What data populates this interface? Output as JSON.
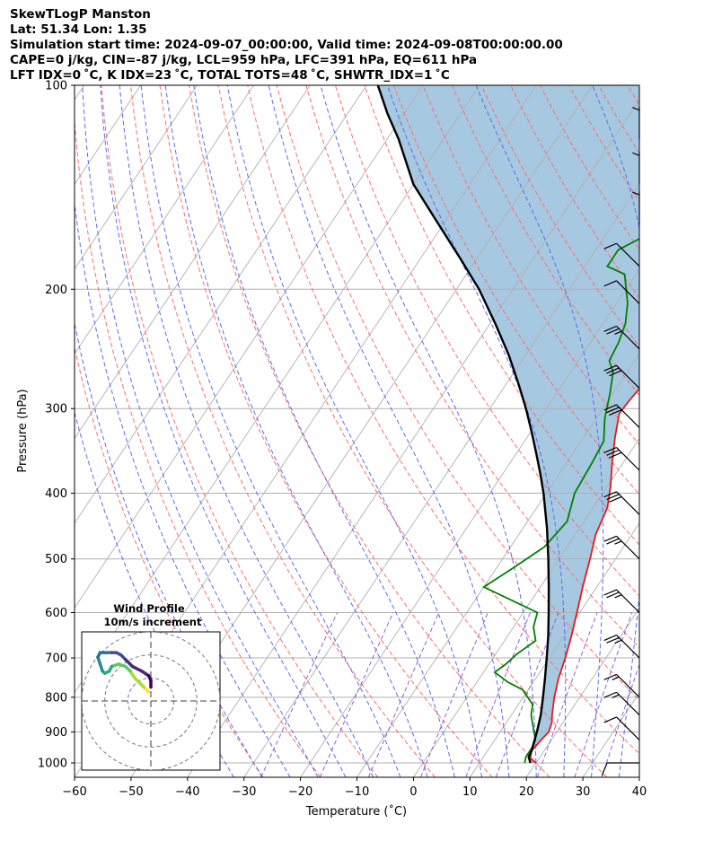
{
  "header": {
    "line1": "SkewTLogP Manston",
    "line2": "Lat: 51.34   Lon: 1.35",
    "line3": "Simulation start time: 2024-09-07_00:00:00, Valid time: 2024-09-08T00:00:00.00",
    "line4": "CAPE=0 j/kg, CIN=-87 j/kg, LCL=959 hPa, LFC=391 hPa, EQ=611 hPa",
    "line5": "LFT IDX=0 ˚C, K IDX=23 ˚C, TOTAL TOTS=48 ˚C, SHWTR_IDX=1 ˚C"
  },
  "chart_data": {
    "type": "line",
    "subtype": "skew-T log-P diagram",
    "xlabel": "Temperature (˚C)",
    "ylabel": "Pressure (hPa)",
    "xlim": [
      -60,
      40
    ],
    "ylim": [
      1050,
      100
    ],
    "yscale": "log",
    "xticks": [
      -60,
      -50,
      -40,
      -30,
      -20,
      -10,
      0,
      10,
      20,
      30,
      40
    ],
    "yticks": [
      100,
      200,
      300,
      400,
      500,
      600,
      700,
      800,
      900,
      1000
    ],
    "colors": {
      "temperature": "#e31a1c",
      "dewpoint": "#008000",
      "parcel": "#000000",
      "cape_fill": "#a6c8e0",
      "dry_adiabat": "#ff6b6b",
      "moist_adiabat": "#5a6cf0",
      "mixing_ratio": "#8a4fd1",
      "isotherm": "#b0b0b0"
    },
    "series": [
      {
        "key": "temperature",
        "points": [
          [
            20,
            1000
          ],
          [
            18.5,
            985
          ],
          [
            17.8,
            960
          ],
          [
            18.2,
            925
          ],
          [
            18.6,
            900
          ],
          [
            18.0,
            870
          ],
          [
            17.2,
            850
          ],
          [
            15.5,
            800
          ],
          [
            14.0,
            750
          ],
          [
            12.8,
            700
          ],
          [
            11.3,
            650
          ],
          [
            9.5,
            600
          ],
          [
            7.5,
            550
          ],
          [
            5.5,
            500
          ],
          [
            3.6,
            460
          ],
          [
            2.5,
            420
          ],
          [
            0.5,
            390
          ],
          [
            -2.0,
            360
          ],
          [
            -4.5,
            330
          ],
          [
            -6.5,
            305
          ],
          [
            -6.2,
            290
          ],
          [
            -5.5,
            270
          ],
          [
            -4.8,
            250
          ],
          [
            -3.5,
            235
          ],
          [
            -1.5,
            222
          ],
          [
            0.3,
            210
          ],
          [
            1.3,
            200
          ],
          [
            1.8,
            190
          ],
          [
            2.8,
            180
          ],
          [
            4.2,
            170
          ],
          [
            6.2,
            155
          ],
          [
            7.8,
            143
          ],
          [
            10.5,
            135
          ],
          [
            11.8,
            125
          ],
          [
            13.5,
            115
          ],
          [
            14.8,
            108
          ],
          [
            16,
            100
          ]
        ]
      },
      {
        "key": "dewpoint",
        "points": [
          [
            18,
            1000
          ],
          [
            17.5,
            980
          ],
          [
            17.5,
            950
          ],
          [
            17.2,
            925
          ],
          [
            16,
            900
          ],
          [
            13.5,
            850
          ],
          [
            12.5,
            820
          ],
          [
            9,
            780
          ],
          [
            5.5,
            760
          ],
          [
            2,
            735
          ],
          [
            3,
            715
          ],
          [
            3.8,
            690
          ],
          [
            5.5,
            660
          ],
          [
            3.5,
            630
          ],
          [
            2.5,
            600
          ],
          [
            -10,
            550
          ],
          [
            -7,
            515
          ],
          [
            -4,
            480
          ],
          [
            -3,
            440
          ],
          [
            -5,
            400
          ],
          [
            -5.5,
            360
          ],
          [
            -6,
            335
          ],
          [
            -8.5,
            310
          ],
          [
            -10.5,
            285
          ],
          [
            -12.5,
            265
          ],
          [
            -14.5,
            255
          ],
          [
            -15,
            240
          ],
          [
            -16,
            225
          ],
          [
            -18,
            210
          ],
          [
            -22,
            190
          ],
          [
            -26,
            185
          ],
          [
            -26,
            175
          ],
          [
            -23,
            167
          ],
          [
            -22,
            158
          ],
          [
            -16,
            130
          ],
          [
            -10,
            100
          ]
        ]
      },
      {
        "key": "parcel",
        "points": [
          [
            19,
            1000
          ],
          [
            18,
            980
          ],
          [
            17.8,
            960
          ],
          [
            16.5,
            900
          ],
          [
            15.2,
            850
          ],
          [
            13.5,
            800
          ],
          [
            11.6,
            750
          ],
          [
            9.5,
            700
          ],
          [
            7.2,
            650
          ],
          [
            4.5,
            600
          ],
          [
            1.5,
            550
          ],
          [
            -1.9,
            500
          ],
          [
            -5.8,
            450
          ],
          [
            -10.5,
            400
          ],
          [
            -13.3,
            375
          ],
          [
            -16.4,
            350
          ],
          [
            -19.8,
            325
          ],
          [
            -23.6,
            300
          ],
          [
            -28,
            275
          ],
          [
            -33,
            250
          ],
          [
            -39,
            225
          ],
          [
            -46,
            200
          ],
          [
            -53,
            180
          ],
          [
            -61,
            160
          ],
          [
            -70,
            140
          ],
          [
            -78,
            120
          ],
          [
            -83,
            110
          ],
          [
            -88,
            100
          ]
        ]
      }
    ],
    "wind_barbs": [
      {
        "p": 1000,
        "dir": "W",
        "speed_kt": 10
      },
      {
        "p": 925,
        "dir": "NW",
        "speed_kt": 10
      },
      {
        "p": 850,
        "dir": "NW",
        "speed_kt": 15
      },
      {
        "p": 800,
        "dir": "NW",
        "speed_kt": 15
      },
      {
        "p": 700,
        "dir": "NW",
        "speed_kt": 25
      },
      {
        "p": 600,
        "dir": "NW",
        "speed_kt": 25
      },
      {
        "p": 500,
        "dir": "NW",
        "speed_kt": 25
      },
      {
        "p": 430,
        "dir": "NW",
        "speed_kt": 30
      },
      {
        "p": 370,
        "dir": "NW",
        "speed_kt": 30
      },
      {
        "p": 320,
        "dir": "NW",
        "speed_kt": 30
      },
      {
        "p": 280,
        "dir": "NW",
        "speed_kt": 30
      },
      {
        "p": 245,
        "dir": "NW",
        "speed_kt": 25
      },
      {
        "p": 210,
        "dir": "NW",
        "speed_kt": 10
      },
      {
        "p": 185,
        "dir": "NW",
        "speed_kt": 10
      },
      {
        "p": 160,
        "dir": "N",
        "speed_kt": 5
      },
      {
        "p": 140,
        "dir": "N",
        "speed_kt": 5
      },
      {
        "p": 120,
        "dir": "N",
        "speed_kt": 5
      }
    ],
    "hodograph": {
      "title": "Wind Profile",
      "subtitle": "10m/s increment",
      "ring_increment_ms": 10,
      "range_ms": [
        -30,
        30
      ],
      "points": [
        [
          -1,
          4
        ],
        [
          -2,
          5
        ],
        [
          -3,
          6
        ],
        [
          -5,
          8
        ],
        [
          -7,
          10
        ],
        [
          -9,
          13
        ],
        [
          -11,
          15
        ],
        [
          -14,
          16
        ],
        [
          -17,
          15
        ],
        [
          -18,
          13
        ],
        [
          -20,
          12
        ],
        [
          -21,
          13
        ],
        [
          -22,
          16
        ],
        [
          -23,
          19
        ],
        [
          -22,
          21
        ],
        [
          -20,
          21
        ],
        [
          -17,
          21
        ],
        [
          -15,
          21
        ],
        [
          -13,
          20
        ],
        [
          -11,
          18
        ],
        [
          -8,
          15
        ],
        [
          -4,
          13
        ],
        [
          -1,
          11
        ],
        [
          0,
          9
        ],
        [
          0,
          6
        ]
      ]
    }
  }
}
